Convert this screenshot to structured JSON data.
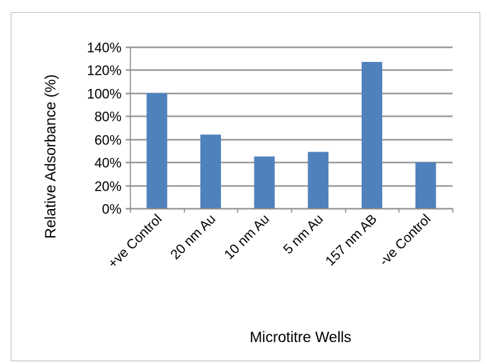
{
  "chart_data": {
    "type": "bar",
    "categories": [
      "+ve Control",
      "20 nm Au",
      "10 nm Au",
      "5 nm Au",
      "157 nm AB",
      "-ve Control"
    ],
    "values": [
      100,
      64,
      45,
      49,
      127,
      40
    ],
    "xlabel": "Microtitre Wells",
    "ylabel": "Relative Adsorbance (%)",
    "ylim": [
      0,
      140
    ],
    "yticks": [
      "0%",
      "20%",
      "40%",
      "60%",
      "80%",
      "100%",
      "120%",
      "140%"
    ],
    "ytick_values": [
      0,
      20,
      40,
      60,
      80,
      100,
      120,
      140
    ],
    "grid": true,
    "legend": "none",
    "colors": {
      "bar": "#4f81bd",
      "grid": "#8c8c8c",
      "axis": "#8c8c8c",
      "border": "#bfbfbf"
    }
  }
}
